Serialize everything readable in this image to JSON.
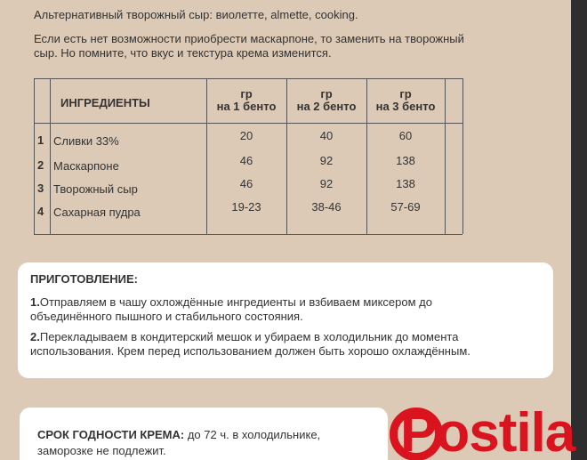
{
  "intro": {
    "lines": [
      "Альтернативный творожный сыр: виолетте, almette, cooking.",
      "Если есть нет возможности приобрести маскарпоне, то заменить на творожный",
      "сыр. Но помните, что вкус и текстура крема изменится."
    ]
  },
  "table": {
    "header": [
      "ИНГРЕДИЕНТЫ",
      [
        "гр",
        "на 1 бенто"
      ],
      [
        "гр",
        "на 2 бенто"
      ],
      [
        "гр",
        "на 3 бенто"
      ]
    ],
    "rows": [
      [
        1,
        "Сливки 33%",
        20,
        40,
        60
      ],
      [
        2,
        "Маскарпоне",
        46,
        92,
        138
      ],
      [
        3,
        "Творожный сыр",
        46,
        92,
        138
      ],
      [
        4,
        "Сахарная пудра",
        "19-23",
        "38-46",
        "57-69"
      ]
    ]
  },
  "preparation": {
    "title": "ПРИГОТОВЛЕНИЕ:",
    "steps": [
      {
        "number": "1.",
        "lines": [
          "Отправляем в чашу охлождённые ингредиенты и взбиваем миксером до",
          "объединённого пышного и стабильного состояния."
        ]
      },
      {
        "number": "2.",
        "lines": [
          "Перекладываем в кондитерский мешок и убираем в холодильник до момента",
          "использования. Крем перед использованием должен быть хорошо охлаждённым."
        ]
      }
    ]
  },
  "shelf_life": {
    "label": "СРОК ГОДНОСТИ КРЕМА:",
    "lines": [
      " до 72 ч. в холодильнике,",
      "заморозке не подлежит."
    ]
  },
  "watermark": "Postila"
}
